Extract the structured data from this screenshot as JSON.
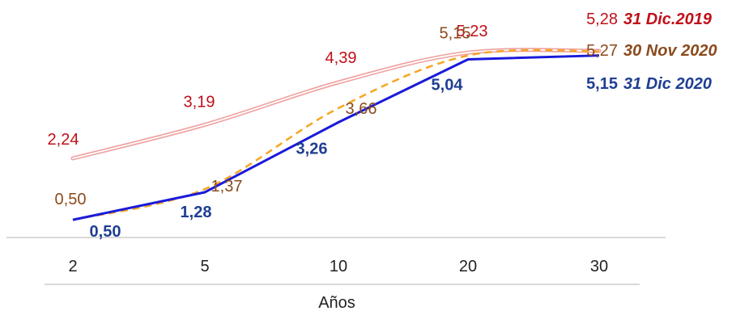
{
  "chart_data": {
    "type": "line",
    "xlabel": "Años",
    "ylabel": "",
    "categories": [
      "2",
      "5",
      "10",
      "20",
      "30"
    ],
    "ylim": [
      0,
      5.6
    ],
    "grid": false,
    "series": [
      {
        "name": "31 Dic.2019",
        "color": "#c0101a",
        "style": "double-line",
        "values": [
          2.24,
          3.19,
          4.39,
          5.23,
          5.28
        ],
        "labels": [
          "2,24",
          "3,19",
          "4,39",
          "5,23",
          "5,28"
        ]
      },
      {
        "name": "30 Nov 2020",
        "color": "#8b4a1c",
        "style": "dashed",
        "line_color": "#f5a623",
        "values": [
          0.5,
          1.37,
          3.66,
          5.15,
          5.27
        ],
        "labels": [
          "0,50",
          "1,37",
          "3,66",
          "5,15",
          "5,27"
        ]
      },
      {
        "name": "31 Dic 2020",
        "color": "#1f3e93",
        "style": "solid",
        "line_color": "#1a1adb",
        "values": [
          0.5,
          1.28,
          3.26,
          5.04,
          5.15
        ],
        "labels": [
          "0,50",
          "1,28",
          "3,26",
          "5,04",
          "5,15"
        ]
      }
    ]
  }
}
